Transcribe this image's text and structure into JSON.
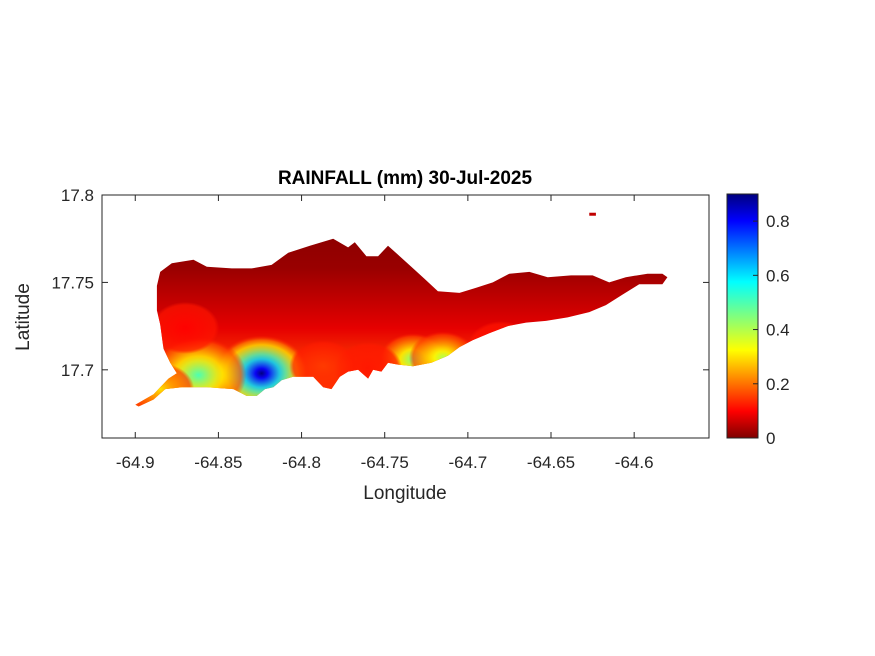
{
  "chart_data": {
    "type": "heatmap",
    "title": "RAINFALL (mm) 30-Jul-2025",
    "xlabel": "Longitude",
    "ylabel": "Latitude",
    "xlim": [
      -64.92,
      -64.555
    ],
    "ylim": [
      17.661,
      17.8
    ],
    "xticks": [
      -64.9,
      -64.85,
      -64.8,
      -64.75,
      -64.7,
      -64.65,
      -64.6
    ],
    "xtick_labels": [
      "-64.9",
      "-64.85",
      "-64.8",
      "-64.75",
      "-64.7",
      "-64.65",
      "-64.6"
    ],
    "yticks": [
      17.7,
      17.75,
      17.8
    ],
    "ytick_labels": [
      "17.7",
      "17.75",
      "17.8"
    ],
    "colorbar": {
      "colormap": "jet",
      "range": [
        0,
        0.9
      ],
      "ticks": [
        0,
        0.2,
        0.4,
        0.6,
        0.8
      ],
      "tick_labels": [
        "0",
        "0.2",
        "0.4",
        "0.6",
        "0.8"
      ]
    },
    "grid": false,
    "hotspots": [
      {
        "lon": -64.824,
        "lat": 17.698,
        "value": 0.9
      },
      {
        "lon": -64.862,
        "lat": 17.697,
        "value": 0.5
      },
      {
        "lon": -64.885,
        "lat": 17.689,
        "value": 0.3
      },
      {
        "lon": -64.733,
        "lat": 17.706,
        "value": 0.45
      },
      {
        "lon": -64.715,
        "lat": 17.707,
        "value": 0.4
      },
      {
        "lon": -64.76,
        "lat": 17.701,
        "value": 0.12
      },
      {
        "lon": -64.68,
        "lat": 17.713,
        "value": 0.1
      },
      {
        "lon": -64.787,
        "lat": 17.702,
        "value": 0.15
      },
      {
        "lon": -64.87,
        "lat": 17.724,
        "value": 0.1
      }
    ],
    "island_outline": [
      [
        -64.9,
        17.68
      ],
      [
        -64.889,
        17.686
      ],
      [
        -64.88,
        17.695
      ],
      [
        -64.875,
        17.698
      ],
      [
        -64.879,
        17.704
      ],
      [
        -64.883,
        17.712
      ],
      [
        -64.885,
        17.726
      ],
      [
        -64.887,
        17.734
      ],
      [
        -64.887,
        17.748
      ],
      [
        -64.885,
        17.756
      ],
      [
        -64.878,
        17.761
      ],
      [
        -64.865,
        17.763
      ],
      [
        -64.857,
        17.759
      ],
      [
        -64.842,
        17.758
      ],
      [
        -64.83,
        17.758
      ],
      [
        -64.818,
        17.76
      ],
      [
        -64.808,
        17.767
      ],
      [
        -64.795,
        17.771
      ],
      [
        -64.781,
        17.775
      ],
      [
        -64.772,
        17.77
      ],
      [
        -64.768,
        17.773
      ],
      [
        -64.761,
        17.765
      ],
      [
        -64.754,
        17.765
      ],
      [
        -64.748,
        17.771
      ],
      [
        -64.741,
        17.765
      ],
      [
        -64.734,
        17.759
      ],
      [
        -64.726,
        17.752
      ],
      [
        -64.718,
        17.745
      ],
      [
        -64.705,
        17.744
      ],
      [
        -64.695,
        17.747
      ],
      [
        -64.685,
        17.75
      ],
      [
        -64.675,
        17.755
      ],
      [
        -64.663,
        17.756
      ],
      [
        -64.652,
        17.753
      ],
      [
        -64.638,
        17.754
      ],
      [
        -64.625,
        17.754
      ],
      [
        -64.615,
        17.75
      ],
      [
        -64.605,
        17.753
      ],
      [
        -64.592,
        17.755
      ],
      [
        -64.583,
        17.755
      ],
      [
        -64.58,
        17.753
      ],
      [
        -64.583,
        17.749
      ],
      [
        -64.597,
        17.749
      ],
      [
        -64.607,
        17.743
      ],
      [
        -64.617,
        17.737
      ],
      [
        -64.627,
        17.733
      ],
      [
        -64.64,
        17.73
      ],
      [
        -64.653,
        17.728
      ],
      [
        -64.665,
        17.727
      ],
      [
        -64.676,
        17.725
      ],
      [
        -64.687,
        17.721
      ],
      [
        -64.697,
        17.717
      ],
      [
        -64.705,
        17.713
      ],
      [
        -64.712,
        17.708
      ],
      [
        -64.722,
        17.704
      ],
      [
        -64.733,
        17.702
      ],
      [
        -64.742,
        17.703
      ],
      [
        -64.748,
        17.704
      ],
      [
        -64.752,
        17.699
      ],
      [
        -64.757,
        17.7
      ],
      [
        -64.76,
        17.695
      ],
      [
        -64.766,
        17.7
      ],
      [
        -64.772,
        17.699
      ],
      [
        -64.777,
        17.696
      ],
      [
        -64.782,
        17.689
      ],
      [
        -64.787,
        17.69
      ],
      [
        -64.793,
        17.696
      ],
      [
        -64.805,
        17.696
      ],
      [
        -64.812,
        17.694
      ],
      [
        -64.817,
        17.69
      ],
      [
        -64.822,
        17.689
      ],
      [
        -64.827,
        17.685
      ],
      [
        -64.833,
        17.685
      ],
      [
        -64.841,
        17.689
      ],
      [
        -64.857,
        17.69
      ],
      [
        -64.872,
        17.69
      ],
      [
        -64.882,
        17.689
      ],
      [
        -64.889,
        17.683
      ],
      [
        -64.898,
        17.679
      ]
    ],
    "islet": [
      [
        -64.627,
        17.789
      ],
      [
        -64.623,
        17.789
      ]
    ]
  }
}
